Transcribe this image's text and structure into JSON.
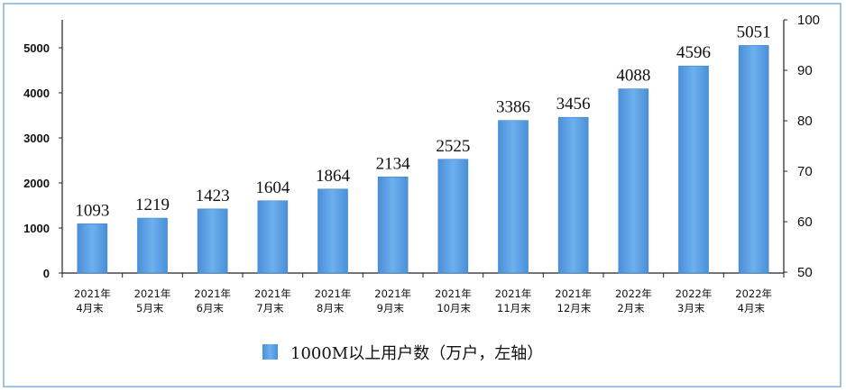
{
  "chart_data": {
    "type": "bar",
    "categories": [
      [
        "2021年",
        "4月末"
      ],
      [
        "2021年",
        "5月末"
      ],
      [
        "2021年",
        "6月末"
      ],
      [
        "2021年",
        "7月末"
      ],
      [
        "2021年",
        "8月末"
      ],
      [
        "2021年",
        "9月末"
      ],
      [
        "2021年",
        "10月末"
      ],
      [
        "2021年",
        "11月末"
      ],
      [
        "2021年",
        "12月末"
      ],
      [
        "2022年",
        "2月末"
      ],
      [
        "2022年",
        "3月末"
      ],
      [
        "2022年",
        "4月末"
      ]
    ],
    "series": [
      {
        "name": "1000M以上用户数（万户，左轴）",
        "values": [
          1093,
          1219,
          1423,
          1604,
          1864,
          2134,
          2525,
          3386,
          3456,
          4088,
          4596,
          5051
        ],
        "color": "#5ba3e6"
      }
    ],
    "y_left": {
      "ticks": [
        0,
        1000,
        2000,
        3000,
        4000,
        5000
      ],
      "range": [
        0,
        5000
      ]
    },
    "y_right": {
      "ticks": [
        50,
        60,
        70,
        80,
        90,
        100
      ],
      "range": [
        50,
        100
      ]
    },
    "legend_position": "bottom-center",
    "grid": false
  }
}
